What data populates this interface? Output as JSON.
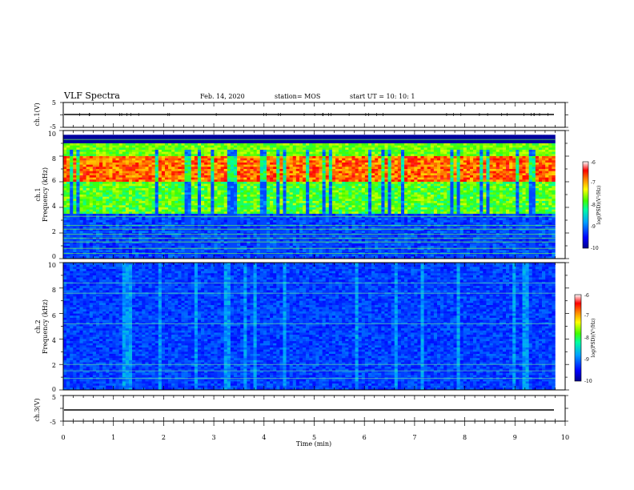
{
  "header": {
    "title": "VLF Spectra",
    "date": "Feb. 14, 2020",
    "station": "station= MOS",
    "start": "start  UT =   10: 10: 1"
  },
  "colors": {
    "colormap": [
      "#00008c",
      "#0000ff",
      "#00a0ff",
      "#00ffa0",
      "#40ff00",
      "#ffff00",
      "#ff8000",
      "#ff0000",
      "#ffffff"
    ],
    "axis": "#000000"
  },
  "chart_data": [
    {
      "type": "line",
      "panel": "ch.1 waveform",
      "ylabel": "ch.1(V)",
      "ylim": [
        -5,
        5
      ],
      "yticks": [
        "5",
        "-5"
      ],
      "x_range": [
        0,
        10
      ],
      "series": [
        {
          "approx_value": -1
        }
      ]
    },
    {
      "type": "heatmap",
      "panel": "ch.1 spectrogram",
      "ylabel": "ch.1\nFrequency (kHz)",
      "ylim": [
        0,
        10
      ],
      "yticks": [
        "0",
        "2",
        "4",
        "6",
        "8",
        "10"
      ],
      "x_range": [
        0,
        9.8
      ],
      "colorbar": {
        "label": "log(PSD)(V²/Hz)",
        "ticks": [
          "-6",
          "-7",
          "-8",
          "-9",
          "-10"
        ],
        "range": [
          -10,
          -6
        ]
      },
      "features": {
        "band_top_kHz": 9.0,
        "peak_band_kHz": [
          6.0,
          8.0
        ],
        "low_band_kHz": [
          0,
          3.5
        ],
        "lines_kHz": [
          0.4,
          0.8,
          1.3,
          1.6,
          1.9,
          2.3,
          2.6,
          3.3,
          9.3
        ]
      }
    },
    {
      "type": "heatmap",
      "panel": "ch.2 spectrogram",
      "ylabel": "ch.2\nFrequency (kHz)",
      "ylim": [
        0,
        10
      ],
      "yticks": [
        "0",
        "2",
        "4",
        "6",
        "8",
        "10"
      ],
      "x_range": [
        0,
        9.8
      ],
      "colorbar": {
        "label": "log(PSD)(V²/Hz)",
        "ticks": [
          "-6",
          "-7",
          "-8",
          "-9",
          "-10"
        ],
        "range": [
          -10,
          -6
        ]
      },
      "features": {
        "lines_kHz": [
          0.9,
          1.5,
          2.0,
          5.2,
          7.6,
          8.4
        ]
      }
    },
    {
      "type": "line",
      "panel": "ch.3 waveform",
      "ylabel": "ch.3(V)",
      "ylim": [
        -5,
        5
      ],
      "yticks": [
        "5",
        "-5"
      ],
      "x_range": [
        0,
        10
      ],
      "series": [
        {
          "approx_value": -1
        }
      ]
    }
  ],
  "xaxis": {
    "label": "Time (min)",
    "ticks": [
      "0",
      "1",
      "2",
      "3",
      "4",
      "5",
      "6",
      "7",
      "8",
      "9",
      "10"
    ],
    "range": [
      0,
      10
    ]
  }
}
